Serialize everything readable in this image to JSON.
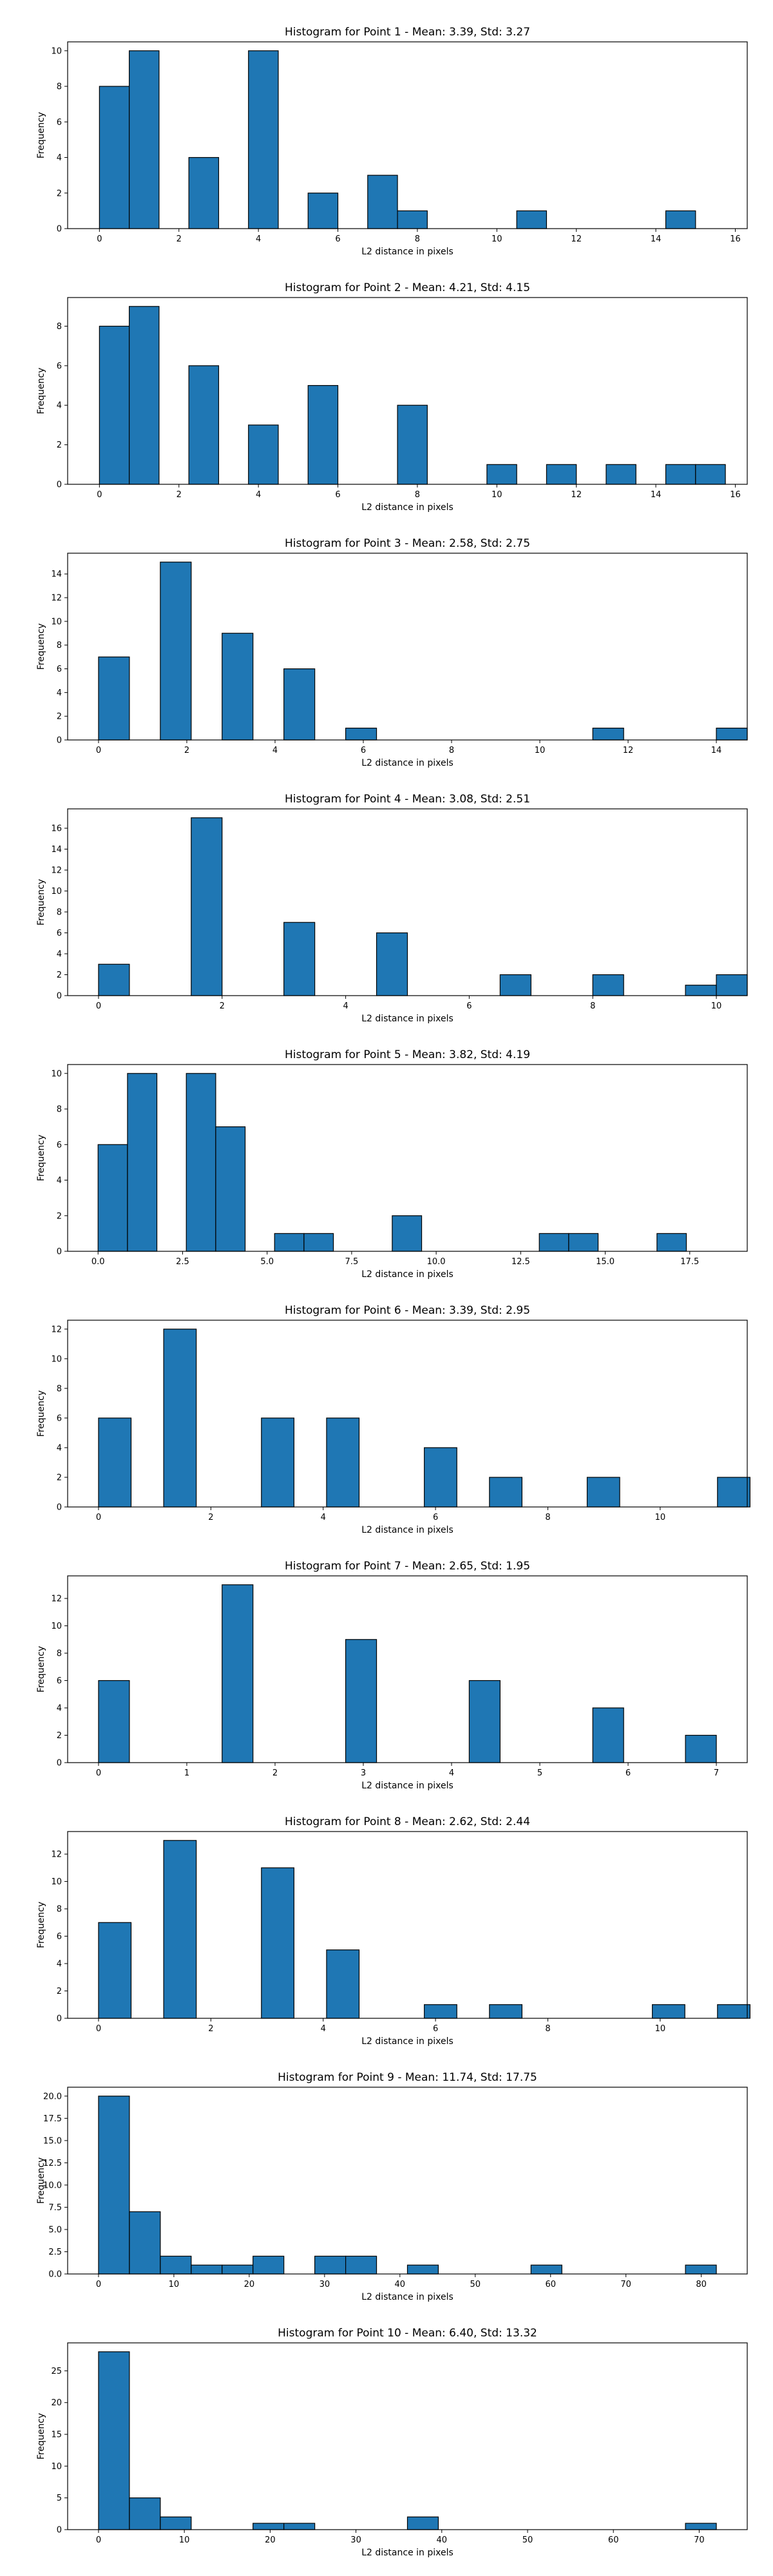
{
  "chart_data": [
    {
      "type": "bar",
      "title": "Histogram for Point 1 - Mean: 3.39, Std: 3.27",
      "xlabel": "L2 distance in pixels",
      "ylabel": "Frequency",
      "xlim": [
        -0.8,
        16.3
      ],
      "ylim": [
        0,
        10.5
      ],
      "xticks": [
        0,
        2,
        4,
        6,
        8,
        10,
        12,
        14,
        16
      ],
      "yticks": [
        0,
        2,
        4,
        6,
        8,
        10
      ],
      "bin_start": 0,
      "bin_width": 0.75,
      "counts": [
        8,
        10,
        0,
        4,
        0,
        10,
        0,
        2,
        0,
        3,
        1,
        0,
        0,
        0,
        1,
        0,
        0,
        0,
        0,
        1
      ]
    },
    {
      "type": "bar",
      "title": "Histogram for Point 2 - Mean: 4.21, Std: 4.15",
      "xlabel": "L2 distance in pixels",
      "ylabel": "Frequency",
      "xlim": [
        -0.8,
        16.3
      ],
      "ylim": [
        0,
        9.45
      ],
      "xticks": [
        0,
        2,
        4,
        6,
        8,
        10,
        12,
        14,
        16
      ],
      "yticks": [
        0,
        2,
        4,
        6,
        8
      ],
      "bin_start": 0,
      "bin_width": 0.75,
      "counts": [
        8,
        9,
        0,
        6,
        0,
        3,
        0,
        5,
        0,
        0,
        4,
        0,
        0,
        1,
        0,
        1,
        0,
        1,
        0,
        1,
        1
      ]
    },
    {
      "type": "bar",
      "title": "Histogram for Point 3 - Mean: 2.58, Std: 2.75",
      "xlabel": "L2 distance in pixels",
      "ylabel": "Frequency",
      "xlim": [
        -0.7,
        14.7
      ],
      "ylim": [
        0,
        15.75
      ],
      "xticks": [
        0,
        2,
        4,
        6,
        8,
        10,
        12,
        14
      ],
      "yticks": [
        0,
        2,
        4,
        6,
        8,
        10,
        12,
        14
      ],
      "bin_start": 0,
      "bin_width": 0.7,
      "counts": [
        7,
        0,
        15,
        0,
        9,
        0,
        6,
        0,
        1,
        0,
        0,
        0,
        0,
        0,
        0,
        0,
        1,
        0,
        0,
        0,
        1
      ]
    },
    {
      "type": "bar",
      "title": "Histogram for Point 4 - Mean: 3.08, Std: 2.51",
      "xlabel": "L2 distance in pixels",
      "ylabel": "Frequency",
      "xlim": [
        -0.5,
        10.5
      ],
      "ylim": [
        0,
        17.85
      ],
      "xticks": [
        0,
        2,
        4,
        6,
        8,
        10
      ],
      "yticks": [
        0,
        2,
        4,
        6,
        8,
        10,
        12,
        14,
        16
      ],
      "bin_start": 0,
      "bin_width": 0.5,
      "counts": [
        3,
        0,
        0,
        17,
        0,
        0,
        7,
        0,
        0,
        6,
        0,
        0,
        0,
        2,
        0,
        0,
        2,
        0,
        0,
        1,
        2
      ]
    },
    {
      "type": "bar",
      "title": "Histogram for Point 5 - Mean: 3.82, Std: 4.19",
      "xlabel": "L2 distance in pixels",
      "ylabel": "Frequency",
      "xlim": [
        -0.9,
        19.2
      ],
      "ylim": [
        0,
        10.5
      ],
      "xticks": [
        0.0,
        2.5,
        5.0,
        7.5,
        10.0,
        12.5,
        15.0,
        17.5
      ],
      "yticks": [
        0,
        2,
        4,
        6,
        8,
        10
      ],
      "xtick_labels": [
        "0.0",
        "2.5",
        "5.0",
        "7.5",
        "10.0",
        "12.5",
        "15.0",
        "17.5"
      ],
      "bin_start": 0,
      "bin_width": 0.87,
      "counts": [
        6,
        10,
        0,
        10,
        7,
        0,
        1,
        1,
        0,
        0,
        2,
        0,
        0,
        0,
        0,
        1,
        1,
        0,
        0,
        1
      ]
    },
    {
      "type": "bar",
      "title": "Histogram for Point 6 - Mean: 3.39, Std: 2.95",
      "xlabel": "L2 distance in pixels",
      "ylabel": "Frequency",
      "xlim": [
        -0.55,
        11.55
      ],
      "ylim": [
        0,
        12.6
      ],
      "xticks": [
        0,
        2,
        4,
        6,
        8,
        10
      ],
      "yticks": [
        0,
        2,
        4,
        6,
        8,
        10,
        12
      ],
      "bin_start": 0,
      "bin_width": 0.58,
      "counts": [
        6,
        0,
        12,
        0,
        0,
        6,
        0,
        6,
        0,
        0,
        4,
        0,
        2,
        0,
        0,
        2,
        0,
        0,
        0,
        2
      ]
    },
    {
      "type": "bar",
      "title": "Histogram for Point 7 - Mean: 2.65, Std: 1.95",
      "xlabel": "L2 distance in pixels",
      "ylabel": "Frequency",
      "xlim": [
        -0.35,
        7.35
      ],
      "ylim": [
        0,
        13.65
      ],
      "xticks": [
        0,
        1,
        2,
        3,
        4,
        5,
        6,
        7
      ],
      "yticks": [
        0,
        2,
        4,
        6,
        8,
        10,
        12
      ],
      "bin_start": 0,
      "bin_width": 0.35,
      "counts": [
        6,
        0,
        0,
        0,
        13,
        0,
        0,
        0,
        9,
        0,
        0,
        0,
        6,
        0,
        0,
        0,
        4,
        0,
        0,
        2
      ]
    },
    {
      "type": "bar",
      "title": "Histogram for Point 8 - Mean: 2.62, Std: 2.44",
      "xlabel": "L2 distance in pixels",
      "ylabel": "Frequency",
      "xlim": [
        -0.55,
        11.55
      ],
      "ylim": [
        0,
        13.65
      ],
      "xticks": [
        0,
        2,
        4,
        6,
        8,
        10
      ],
      "yticks": [
        0,
        2,
        4,
        6,
        8,
        10,
        12
      ],
      "bin_start": 0,
      "bin_width": 0.58,
      "counts": [
        7,
        0,
        13,
        0,
        0,
        11,
        0,
        5,
        0,
        0,
        1,
        0,
        1,
        0,
        0,
        0,
        0,
        1,
        0,
        1
      ]
    },
    {
      "type": "bar",
      "title": "Histogram for Point 9 - Mean: 11.74, Std: 17.75",
      "xlabel": "L2 distance in pixels",
      "ylabel": "Frequency",
      "xlim": [
        -4.1,
        86.1
      ],
      "ylim": [
        0,
        21.0
      ],
      "xticks": [
        0,
        10,
        20,
        30,
        40,
        50,
        60,
        70,
        80
      ],
      "yticks": [
        0,
        2.5,
        5.0,
        7.5,
        10.0,
        12.5,
        15.0,
        17.5,
        20.0
      ],
      "ytick_labels": [
        "0.0",
        "2.5",
        "5.0",
        "7.5",
        "10.0",
        "12.5",
        "15.0",
        "17.5",
        "20.0"
      ],
      "bin_start": 0,
      "bin_width": 4.1,
      "counts": [
        20,
        7,
        2,
        1,
        1,
        2,
        0,
        2,
        2,
        0,
        1,
        0,
        0,
        0,
        1,
        0,
        0,
        0,
        0,
        1
      ]
    },
    {
      "type": "bar",
      "title": "Histogram for Point 10 - Mean: 6.40, Std: 13.32",
      "xlabel": "L2 distance in pixels",
      "ylabel": "Frequency",
      "xlim": [
        -3.6,
        75.6
      ],
      "ylim": [
        0,
        29.4
      ],
      "xticks": [
        0,
        10,
        20,
        30,
        40,
        50,
        60,
        70
      ],
      "yticks": [
        0,
        5,
        10,
        15,
        20,
        25
      ],
      "bin_start": 0,
      "bin_width": 3.6,
      "counts": [
        28,
        5,
        2,
        0,
        0,
        1,
        1,
        0,
        0,
        0,
        2,
        0,
        0,
        0,
        0,
        0,
        0,
        0,
        0,
        1
      ]
    }
  ],
  "style": {
    "bar_fill": "#1f77b4",
    "bar_edge": "#000000",
    "axes_edge": "#000000",
    "background": "#ffffff"
  }
}
